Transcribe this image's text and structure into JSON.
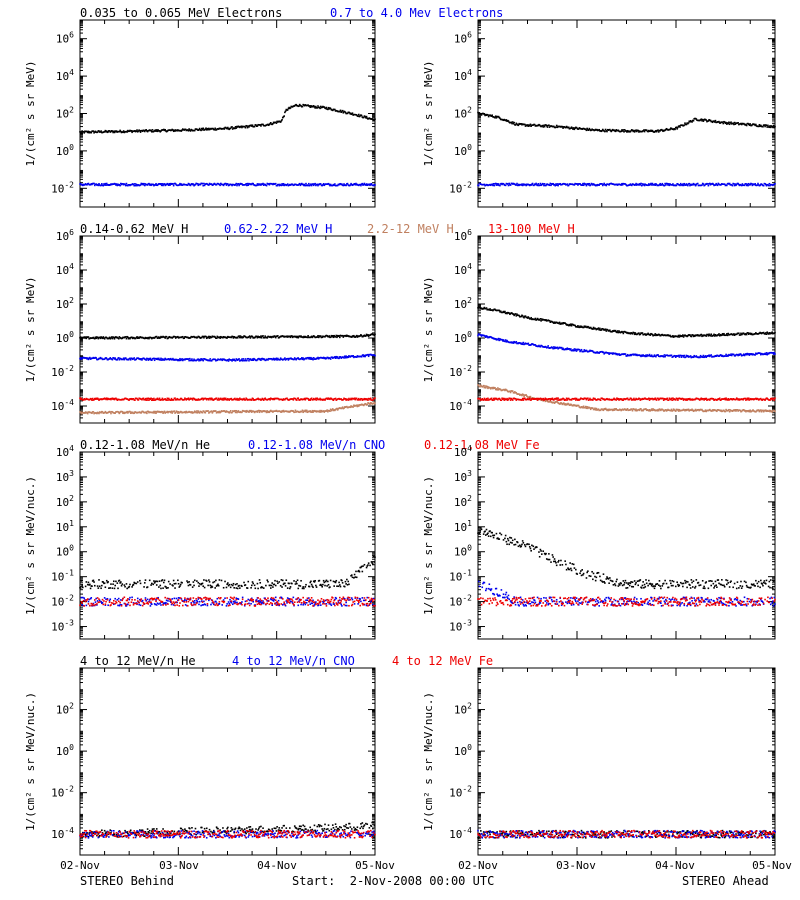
{
  "panel_headers": {
    "electrons": [
      {
        "text": "0.035 to 0.065 MeV Electrons",
        "color": "#000000"
      },
      {
        "text": "0.7 to 4.0 Mev Electrons",
        "color": "#0000ee"
      }
    ],
    "protons": [
      {
        "text": "0.14-0.62 MeV H",
        "color": "#000000"
      },
      {
        "text": "0.62-2.22 MeV H",
        "color": "#0000ee"
      },
      {
        "text": "2.2-12 MeV H",
        "color": "#c08060"
      },
      {
        "text": "13-100 MeV H",
        "color": "#ee0000"
      }
    ],
    "heavy_low": [
      {
        "text": "0.12-1.08 MeV/n He",
        "color": "#000000"
      },
      {
        "text": "0.12-1.08 MeV/n CNO",
        "color": "#0000ee"
      },
      {
        "text": "0.12-1.08 MeV Fe",
        "color": "#ee0000"
      }
    ],
    "heavy_high": [
      {
        "text": "4 to 12 MeV/n He",
        "color": "#000000"
      },
      {
        "text": "4 to 12 MeV/n CNO",
        "color": "#0000ee"
      },
      {
        "text": "4 to 12 MeV Fe",
        "color": "#ee0000"
      }
    ]
  },
  "y_labels": {
    "flux": "1/(cm² s sr MeV)",
    "flux_nuc": "1/(cm² s sr MeV/nuc.)"
  },
  "x_ticks": [
    "02-Nov",
    "03-Nov",
    "04-Nov",
    "05-Nov"
  ],
  "footer": {
    "left": "STEREO Behind",
    "center": "Start:  2-Nov-2008 00:00 UTC",
    "right": "STEREO Ahead"
  },
  "series_colors": {
    "black": "#000000",
    "blue": "#0000ee",
    "tan": "#c08060",
    "red": "#ee0000"
  },
  "chart_data": [
    {
      "type": "scatter",
      "spacecraft": "STEREO Behind",
      "row": 0,
      "yscale": "log",
      "yticks": [
        -2,
        0,
        2,
        4,
        6
      ],
      "ylim_exp": [
        -3,
        7
      ],
      "xlim_days": [
        0,
        3
      ],
      "series": [
        {
          "name": "0.035 to 0.065 MeV Electrons",
          "color": "black",
          "x": [
            0,
            0.5,
            1.0,
            1.5,
            1.9,
            2.05,
            2.1,
            2.2,
            2.5,
            2.8,
            3.0
          ],
          "log10y": [
            1.0,
            1.05,
            1.1,
            1.2,
            1.4,
            1.6,
            2.2,
            2.45,
            2.3,
            1.95,
            1.65
          ]
        },
        {
          "name": "0.7 to 4.0 Mev Electrons",
          "color": "blue",
          "x": [
            0,
            3
          ],
          "log10y": [
            -1.8,
            -1.8
          ]
        }
      ]
    },
    {
      "type": "scatter",
      "spacecraft": "STEREO Ahead",
      "row": 0,
      "yscale": "log",
      "yticks": [
        -2,
        0,
        2,
        4,
        6
      ],
      "ylim_exp": [
        -3,
        7
      ],
      "xlim_days": [
        0,
        3
      ],
      "series": [
        {
          "name": "0.035 to 0.065 MeV Electrons",
          "color": "black",
          "x": [
            0,
            0.2,
            0.4,
            0.8,
            1.2,
            1.8,
            2.0,
            2.2,
            2.5,
            3.0
          ],
          "log10y": [
            2.0,
            1.8,
            1.4,
            1.3,
            1.1,
            1.05,
            1.2,
            1.7,
            1.5,
            1.3
          ]
        },
        {
          "name": "0.7 to 4.0 Mev Electrons",
          "color": "blue",
          "x": [
            0,
            3
          ],
          "log10y": [
            -1.8,
            -1.8
          ]
        }
      ]
    },
    {
      "type": "scatter",
      "spacecraft": "STEREO Behind",
      "row": 1,
      "yscale": "log",
      "yticks": [
        -4,
        -2,
        0,
        2,
        4,
        6
      ],
      "ylim_exp": [
        -5,
        6
      ],
      "xlim_days": [
        0,
        3
      ],
      "series": [
        {
          "name": "0.14-0.62 MeV H",
          "color": "black",
          "x": [
            0,
            1.5,
            2.8,
            3.0
          ],
          "log10y": [
            0.0,
            0.05,
            0.1,
            0.2
          ]
        },
        {
          "name": "0.62-2.22 MeV H",
          "color": "blue",
          "x": [
            0,
            1.5,
            2.5,
            3.0
          ],
          "log10y": [
            -1.2,
            -1.3,
            -1.2,
            -1.0
          ]
        },
        {
          "name": "2.2-12 MeV H",
          "color": "tan",
          "x": [
            0,
            2.5,
            3.0
          ],
          "log10y": [
            -4.4,
            -4.3,
            -3.8
          ]
        },
        {
          "name": "13-100 MeV H",
          "color": "red",
          "x": [
            0,
            3
          ],
          "log10y": [
            -3.6,
            -3.6
          ]
        }
      ]
    },
    {
      "type": "scatter",
      "spacecraft": "STEREO Ahead",
      "row": 1,
      "yscale": "log",
      "yticks": [
        -4,
        -2,
        0,
        2,
        4,
        6
      ],
      "ylim_exp": [
        -5,
        6
      ],
      "xlim_days": [
        0,
        3
      ],
      "series": [
        {
          "name": "0.14-0.62 MeV H",
          "color": "black",
          "x": [
            0,
            0.2,
            0.5,
            1.0,
            1.5,
            2.0,
            3.0
          ],
          "log10y": [
            1.8,
            1.6,
            1.2,
            0.7,
            0.3,
            0.1,
            0.3
          ]
        },
        {
          "name": "0.62-2.22 MeV H",
          "color": "blue",
          "x": [
            0,
            0.3,
            0.8,
            1.5,
            2.2,
            3.0
          ],
          "log10y": [
            0.2,
            -0.2,
            -0.6,
            -1.0,
            -1.1,
            -0.9
          ]
        },
        {
          "name": "2.2-12 MeV H",
          "color": "tan",
          "x": [
            0,
            0.3,
            0.6,
            1.2,
            3.0
          ],
          "log10y": [
            -2.8,
            -3.1,
            -3.6,
            -4.2,
            -4.3
          ]
        },
        {
          "name": "13-100 MeV H",
          "color": "red",
          "x": [
            0,
            3
          ],
          "log10y": [
            -3.6,
            -3.6
          ]
        }
      ]
    },
    {
      "type": "scatter",
      "spacecraft": "STEREO Behind",
      "row": 2,
      "yscale": "log",
      "yticks": [
        -3,
        -2,
        -1,
        0,
        1,
        2,
        3,
        4
      ],
      "ylim_exp": [
        -3.5,
        4
      ],
      "xlim_days": [
        0,
        3
      ],
      "series": [
        {
          "name": "0.12-1.08 MeV/n He",
          "color": "black",
          "x": [
            0,
            2.7,
            3.0
          ],
          "log10y": [
            -1.3,
            -1.3,
            -0.3
          ]
        },
        {
          "name": "0.12-1.08 MeV/n CNO",
          "color": "blue",
          "x": [
            0,
            3
          ],
          "log10y": [
            -2.0,
            -2.0
          ]
        },
        {
          "name": "0.12-1.08 MeV Fe",
          "color": "red",
          "x": [
            0,
            3
          ],
          "log10y": [
            -2.0,
            -2.0
          ]
        }
      ]
    },
    {
      "type": "scatter",
      "spacecraft": "STEREO Ahead",
      "row": 2,
      "yscale": "log",
      "yticks": [
        -3,
        -2,
        -1,
        0,
        1,
        2,
        3,
        4
      ],
      "ylim_exp": [
        -3.5,
        4
      ],
      "xlim_days": [
        0,
        3
      ],
      "series": [
        {
          "name": "0.12-1.08 MeV/n He",
          "color": "black",
          "x": [
            0,
            0.2,
            0.5,
            0.8,
            1.1,
            1.5,
            3.0
          ],
          "log10y": [
            0.9,
            0.6,
            0.2,
            -0.4,
            -0.9,
            -1.3,
            -1.3
          ]
        },
        {
          "name": "0.12-1.08 MeV/n CNO",
          "color": "blue",
          "x": [
            0,
            0.2,
            0.4,
            3.0
          ],
          "log10y": [
            -1.3,
            -1.6,
            -2.0,
            -2.0
          ]
        },
        {
          "name": "0.12-1.08 MeV Fe",
          "color": "red",
          "x": [
            0,
            3
          ],
          "log10y": [
            -2.0,
            -2.0
          ]
        }
      ]
    },
    {
      "type": "scatter",
      "spacecraft": "STEREO Behind",
      "row": 3,
      "yscale": "log",
      "yticks": [
        -4,
        -2,
        0,
        2
      ],
      "ylim_exp": [
        -5,
        4
      ],
      "xlim_days": [
        0,
        3
      ],
      "series": [
        {
          "name": "4 to 12 MeV/n He",
          "color": "black",
          "x": [
            0,
            2.5,
            3.0
          ],
          "log10y": [
            -4.0,
            -3.7,
            -3.6
          ]
        },
        {
          "name": "4 to 12 MeV/n CNO",
          "color": "blue",
          "x": [
            0,
            3
          ],
          "log10y": [
            -4.0,
            -4.0
          ]
        },
        {
          "name": "4 to 12 MeV Fe",
          "color": "red",
          "x": [
            0,
            3
          ],
          "log10y": [
            -4.0,
            -4.0
          ]
        }
      ]
    },
    {
      "type": "scatter",
      "spacecraft": "STEREO Ahead",
      "row": 3,
      "yscale": "log",
      "yticks": [
        -4,
        -2,
        0,
        2
      ],
      "ylim_exp": [
        -5,
        4
      ],
      "xlim_days": [
        0,
        3
      ],
      "series": [
        {
          "name": "4 to 12 MeV/n He",
          "color": "black",
          "x": [
            0,
            3.0
          ],
          "log10y": [
            -4.0,
            -4.0
          ]
        },
        {
          "name": "4 to 12 MeV/n CNO",
          "color": "blue",
          "x": [
            0,
            3
          ],
          "log10y": [
            -4.0,
            -4.0
          ]
        },
        {
          "name": "4 to 12 MeV Fe",
          "color": "red",
          "x": [
            0,
            3
          ],
          "log10y": [
            -4.0,
            -4.0
          ]
        }
      ]
    }
  ]
}
